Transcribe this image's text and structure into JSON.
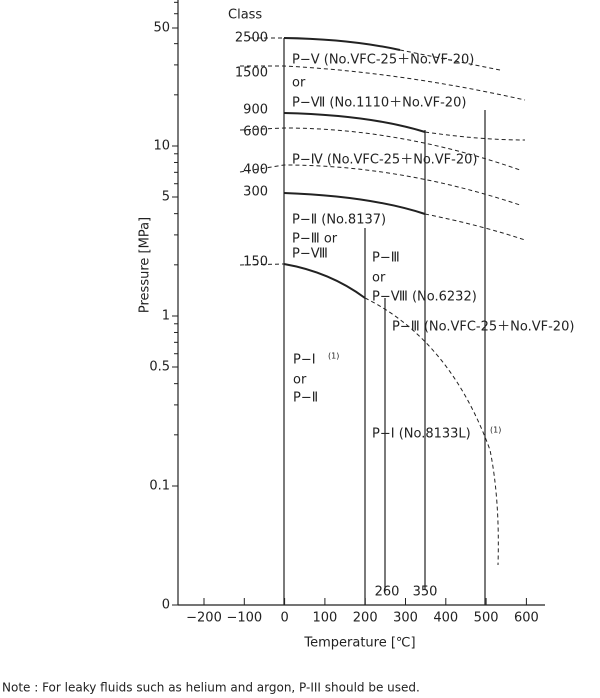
{
  "class_header": "Class",
  "classes": [
    "2500",
    "1500",
    "900",
    "600",
    "400",
    "300",
    "150"
  ],
  "y_axis": {
    "label": "Pressure [MPa]",
    "ticks": [
      "50",
      "10",
      "5",
      "1",
      "0.5",
      "0.1",
      "0"
    ]
  },
  "x_axis": {
    "label": "Temperature [℃]",
    "ticks": [
      "−200",
      "−100",
      "0",
      "100",
      "200",
      "300",
      "400",
      "500",
      "600"
    ]
  },
  "regions": [
    "P−Ⅴ (No.VFC-25＋No.VF-20)",
    "or",
    "P−Ⅶ (No.1110＋No.VF-20)",
    "P−Ⅳ (No.VFC-25＋No.VF-20)",
    "P−Ⅱ (No.8137)",
    "P−Ⅲ or",
    "P−Ⅷ",
    "P−Ⅲ",
    "or",
    "P−Ⅷ (No.6232)",
    "P−Ⅲ (No.VFC-25＋No.VF-20)",
    "P−Ⅰ",
    "(1)",
    "or",
    "P−Ⅱ",
    "P−Ⅰ (No.8133L)",
    "(1)"
  ],
  "vline_labels": [
    "260",
    "350"
  ],
  "note": "Note : For leaky fluids such as helium and argon, P-III should be used."
}
